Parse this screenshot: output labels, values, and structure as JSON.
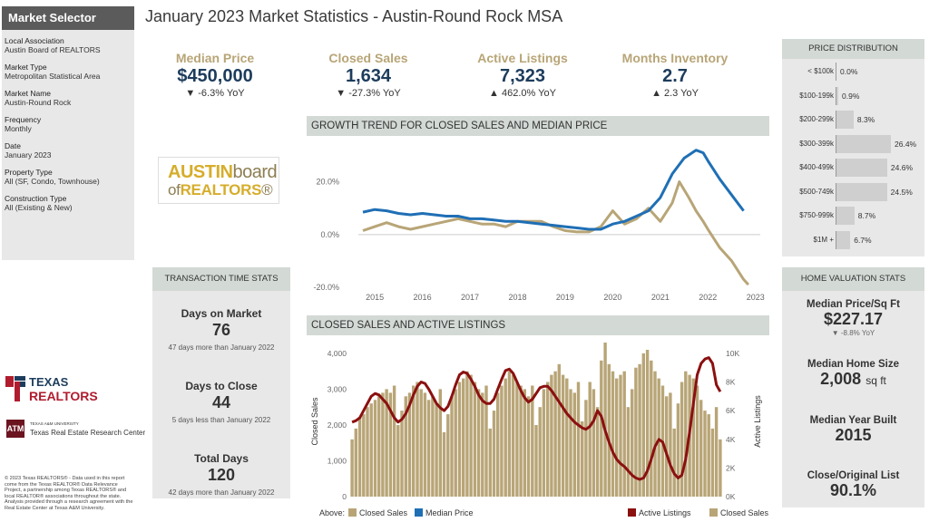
{
  "sidebar": {
    "title": "Market Selector",
    "items": [
      {
        "label": "Local Association",
        "value": "Austin Board of REALTORS"
      },
      {
        "label": "Market Type",
        "value": "Metropolitan Statistical Area"
      },
      {
        "label": "Market Name",
        "value": "Austin-Round Rock"
      },
      {
        "label": "Frequency",
        "value": "Monthly"
      },
      {
        "label": "Date",
        "value": "January 2023"
      },
      {
        "label": "Property Type",
        "value": "All (SF, Condo, Townhouse)"
      },
      {
        "label": "Construction Type",
        "value": "All (Existing & New)"
      }
    ]
  },
  "page_title": "January 2023 Market Statistics - Austin-Round Rock MSA",
  "kpis": [
    {
      "label": "Median Price",
      "value": "$450,000",
      "change": "▼ -6.3% YoY"
    },
    {
      "label": "Closed Sales",
      "value": "1,634",
      "change": "▼ -27.3% YoY"
    },
    {
      "label": "Active Listings",
      "value": "7,323",
      "change": "▲ 462.0% YoY"
    },
    {
      "label": "Months Inventory",
      "value": "2.7",
      "change": "▲ 2.3 YoY"
    }
  ],
  "austin_logo": {
    "line1a": "AUSTIN",
    "line1b": "board",
    "line2a": "of",
    "line2b": "REALTORS",
    "mark": "®"
  },
  "texas_logo": {
    "name": "TEXAS REALTORS"
  },
  "tamu_logo": {
    "small": "TEXAS A&M UNIVERSITY",
    "name": "Texas Real Estate Research Center"
  },
  "copyright": "© 2023 Texas REALTORS® - Data used in this report come from the Texas REALTOR® Data Relevance Project, a partnership among Texas REALTORS® and local REALTOR® associations throughout the state. Analysis provided through a research agreement with the Real Estate Center at Texas A&M University.",
  "transaction_stats": {
    "header": "TRANSACTION TIME STATS",
    "items": [
      {
        "label": "Days on Market",
        "value": "76",
        "note": "47 days more than January 2022"
      },
      {
        "label": "Days to Close",
        "value": "44",
        "note": "5 days less than January 2022"
      },
      {
        "label": "Total Days",
        "value": "120",
        "note": "42 days more than January 2022"
      }
    ]
  },
  "price_distribution": {
    "header": "PRICE DISTRIBUTION",
    "rows": [
      {
        "label": "< $100k",
        "value": "0.0%",
        "pct": 0.0
      },
      {
        "label": "$100-199k",
        "value": "0.9%",
        "pct": 0.9
      },
      {
        "label": "$200-299k",
        "value": "8.3%",
        "pct": 8.3
      },
      {
        "label": "$300-399k",
        "value": "26.4%",
        "pct": 26.4
      },
      {
        "label": "$400-499k",
        "value": "24.6%",
        "pct": 24.6
      },
      {
        "label": "$500-749k",
        "value": "24.5%",
        "pct": 24.5
      },
      {
        "label": "$750-999k",
        "value": "8.7%",
        "pct": 8.7
      },
      {
        "label": "$1M +",
        "value": "6.7%",
        "pct": 6.7
      }
    ]
  },
  "home_valuation": {
    "header": "HOME VALUATION STATS",
    "items": [
      {
        "label": "Median Price/Sq Ft",
        "value": "$227.17",
        "unit": "",
        "note": "▼ -8.8% YoY"
      },
      {
        "label": "Median Home Size",
        "value": "2,008",
        "unit": "sq ft",
        "note": ""
      },
      {
        "label": "Median Year Built",
        "value": "2015",
        "unit": "",
        "note": ""
      },
      {
        "label": "Close/Original List",
        "value": "90.1%",
        "unit": "",
        "note": ""
      }
    ]
  },
  "growth_chart": {
    "header": "GROWTH TREND FOR CLOSED SALES AND MEDIAN PRICE",
    "legend_prefix": "Above:",
    "legend": [
      {
        "name": "Closed Sales",
        "color": "#b8a577"
      },
      {
        "name": "Median Price",
        "color": "#1f6fb5"
      }
    ]
  },
  "listings_chart": {
    "header": "CLOSED SALES AND ACTIVE LISTINGS",
    "legend": [
      {
        "name": "Active Listings",
        "color": "#8b1010"
      },
      {
        "name": "Closed Sales",
        "color": "#b8a577"
      }
    ]
  },
  "chart_data": [
    {
      "type": "line",
      "title": "GROWTH TREND FOR CLOSED SALES AND MEDIAN PRICE",
      "x_ticks": [
        "2015",
        "2016",
        "2017",
        "2018",
        "2019",
        "2020",
        "2021",
        "2022",
        "2023"
      ],
      "y_ticks": [
        "20.0%",
        "0.0%",
        "-20.0%"
      ],
      "ylim": [
        -20,
        35
      ],
      "xlim": [
        2014.75,
        2023.1
      ],
      "series": [
        {
          "name": "Closed Sales",
          "color": "#b8a577",
          "points": [
            [
              2014.75,
              1.5
            ],
            [
              2015.0,
              3
            ],
            [
              2015.25,
              4.5
            ],
            [
              2015.5,
              3
            ],
            [
              2015.75,
              2
            ],
            [
              2016.0,
              3
            ],
            [
              2016.25,
              4
            ],
            [
              2016.5,
              5
            ],
            [
              2016.75,
              6
            ],
            [
              2017.0,
              5
            ],
            [
              2017.25,
              4
            ],
            [
              2017.5,
              4
            ],
            [
              2017.75,
              3
            ],
            [
              2018.0,
              5
            ],
            [
              2018.25,
              5
            ],
            [
              2018.5,
              5
            ],
            [
              2018.75,
              3
            ],
            [
              2019.0,
              1.5
            ],
            [
              2019.25,
              1
            ],
            [
              2019.5,
              1
            ],
            [
              2019.75,
              3
            ],
            [
              2020.0,
              9
            ],
            [
              2020.25,
              4
            ],
            [
              2020.5,
              6
            ],
            [
              2020.75,
              10
            ],
            [
              2021.0,
              5
            ],
            [
              2021.25,
              12
            ],
            [
              2021.4,
              20
            ],
            [
              2021.6,
              14
            ],
            [
              2021.75,
              9
            ],
            [
              2021.9,
              5
            ],
            [
              2022.0,
              2
            ],
            [
              2022.25,
              -5
            ],
            [
              2022.5,
              -10
            ],
            [
              2022.75,
              -17
            ],
            [
              2022.85,
              -19
            ]
          ]
        },
        {
          "name": "Median Price",
          "color": "#1f6fb5",
          "points": [
            [
              2014.75,
              8.5
            ],
            [
              2015.0,
              9.5
            ],
            [
              2015.25,
              9
            ],
            [
              2015.5,
              8
            ],
            [
              2015.75,
              7.5
            ],
            [
              2016.0,
              8
            ],
            [
              2016.25,
              7.5
            ],
            [
              2016.5,
              7
            ],
            [
              2016.75,
              7
            ],
            [
              2017.0,
              6
            ],
            [
              2017.25,
              6
            ],
            [
              2017.5,
              5.5
            ],
            [
              2017.75,
              5
            ],
            [
              2018.0,
              5
            ],
            [
              2018.25,
              4.5
            ],
            [
              2018.5,
              4
            ],
            [
              2018.75,
              3.5
            ],
            [
              2019.0,
              3
            ],
            [
              2019.25,
              2.5
            ],
            [
              2019.5,
              2
            ],
            [
              2019.75,
              2
            ],
            [
              2020.0,
              4
            ],
            [
              2020.25,
              5
            ],
            [
              2020.5,
              7
            ],
            [
              2020.75,
              9
            ],
            [
              2021.0,
              14
            ],
            [
              2021.25,
              23
            ],
            [
              2021.5,
              29
            ],
            [
              2021.75,
              32
            ],
            [
              2021.9,
              31
            ],
            [
              2022.0,
              28
            ],
            [
              2022.25,
              21
            ],
            [
              2022.5,
              15
            ],
            [
              2022.75,
              9
            ]
          ]
        }
      ]
    },
    {
      "type": "bar",
      "title": "CLOSED SALES AND ACTIVE LISTINGS",
      "ylabel": "Closed Sales",
      "y2label": "Active Listings",
      "y_ticks": [
        "4,000",
        "3,000",
        "2,000",
        "1,000",
        "0"
      ],
      "y2_ticks": [
        "10K",
        "8K",
        "6K",
        "4K",
        "2K",
        "0K"
      ],
      "ylim": [
        0,
        4200
      ],
      "y2lim": [
        0,
        10500
      ],
      "series": [
        {
          "name": "Closed Sales",
          "color": "#b8a577",
          "values": [
            1600,
            1900,
            2200,
            2300,
            2500,
            2600,
            2700,
            2800,
            2900,
            3000,
            2900,
            3100,
            2000,
            2400,
            2800,
            2900,
            3100,
            3200,
            3000,
            2900,
            2700,
            2800,
            2600,
            3000,
            1800,
            2300,
            2800,
            3000,
            3200,
            3300,
            3500,
            3400,
            3200,
            3000,
            2900,
            3100,
            1900,
            2400,
            2900,
            3100,
            3300,
            3500,
            3400,
            3200,
            3100,
            3000,
            2800,
            3100,
            2000,
            2500,
            3000,
            3200,
            3400,
            3500,
            3700,
            3400,
            3300,
            3000,
            2900,
            3200,
            2100,
            2700,
            3200,
            3000,
            2500,
            3800,
            4300,
            3700,
            3500,
            3300,
            3400,
            3500,
            2500,
            3000,
            3600,
            3700,
            4000,
            4100,
            3800,
            3500,
            3300,
            3100,
            2800,
            2900,
            1900,
            2600,
            3200,
            3500,
            3400,
            3300,
            3100,
            2700,
            2400,
            2300,
            1900,
            2500,
            1600
          ]
        },
        {
          "name": "Active Listings",
          "color": "#8b1010",
          "values": [
            5200,
            5300,
            5500,
            6000,
            6500,
            7000,
            7200,
            7100,
            6800,
            6500,
            6000,
            5500,
            5200,
            5400,
            5800,
            6400,
            7100,
            7700,
            8000,
            7900,
            7500,
            7000,
            6500,
            6200,
            6000,
            6300,
            7000,
            7800,
            8500,
            8700,
            8600,
            8200,
            7700,
            7100,
            6700,
            6500,
            6500,
            6800,
            7500,
            8200,
            8800,
            8900,
            8600,
            8000,
            7400,
            6900,
            6600,
            6800,
            7200,
            7600,
            7700,
            7700,
            7400,
            7000,
            6600,
            6200,
            5800,
            5500,
            5200,
            5000,
            4800,
            4700,
            4900,
            5300,
            6000,
            5600,
            4600,
            3800,
            3100,
            2600,
            2300,
            2100,
            1800,
            1500,
            1300,
            1200,
            1300,
            1800,
            2600,
            3500,
            4000,
            3800,
            3000,
            2200,
            1600,
            1300,
            1500,
            2600,
            4500,
            6500,
            8500,
            9300,
            9600,
            9700,
            9300,
            7800,
            7323
          ]
        }
      ]
    }
  ]
}
